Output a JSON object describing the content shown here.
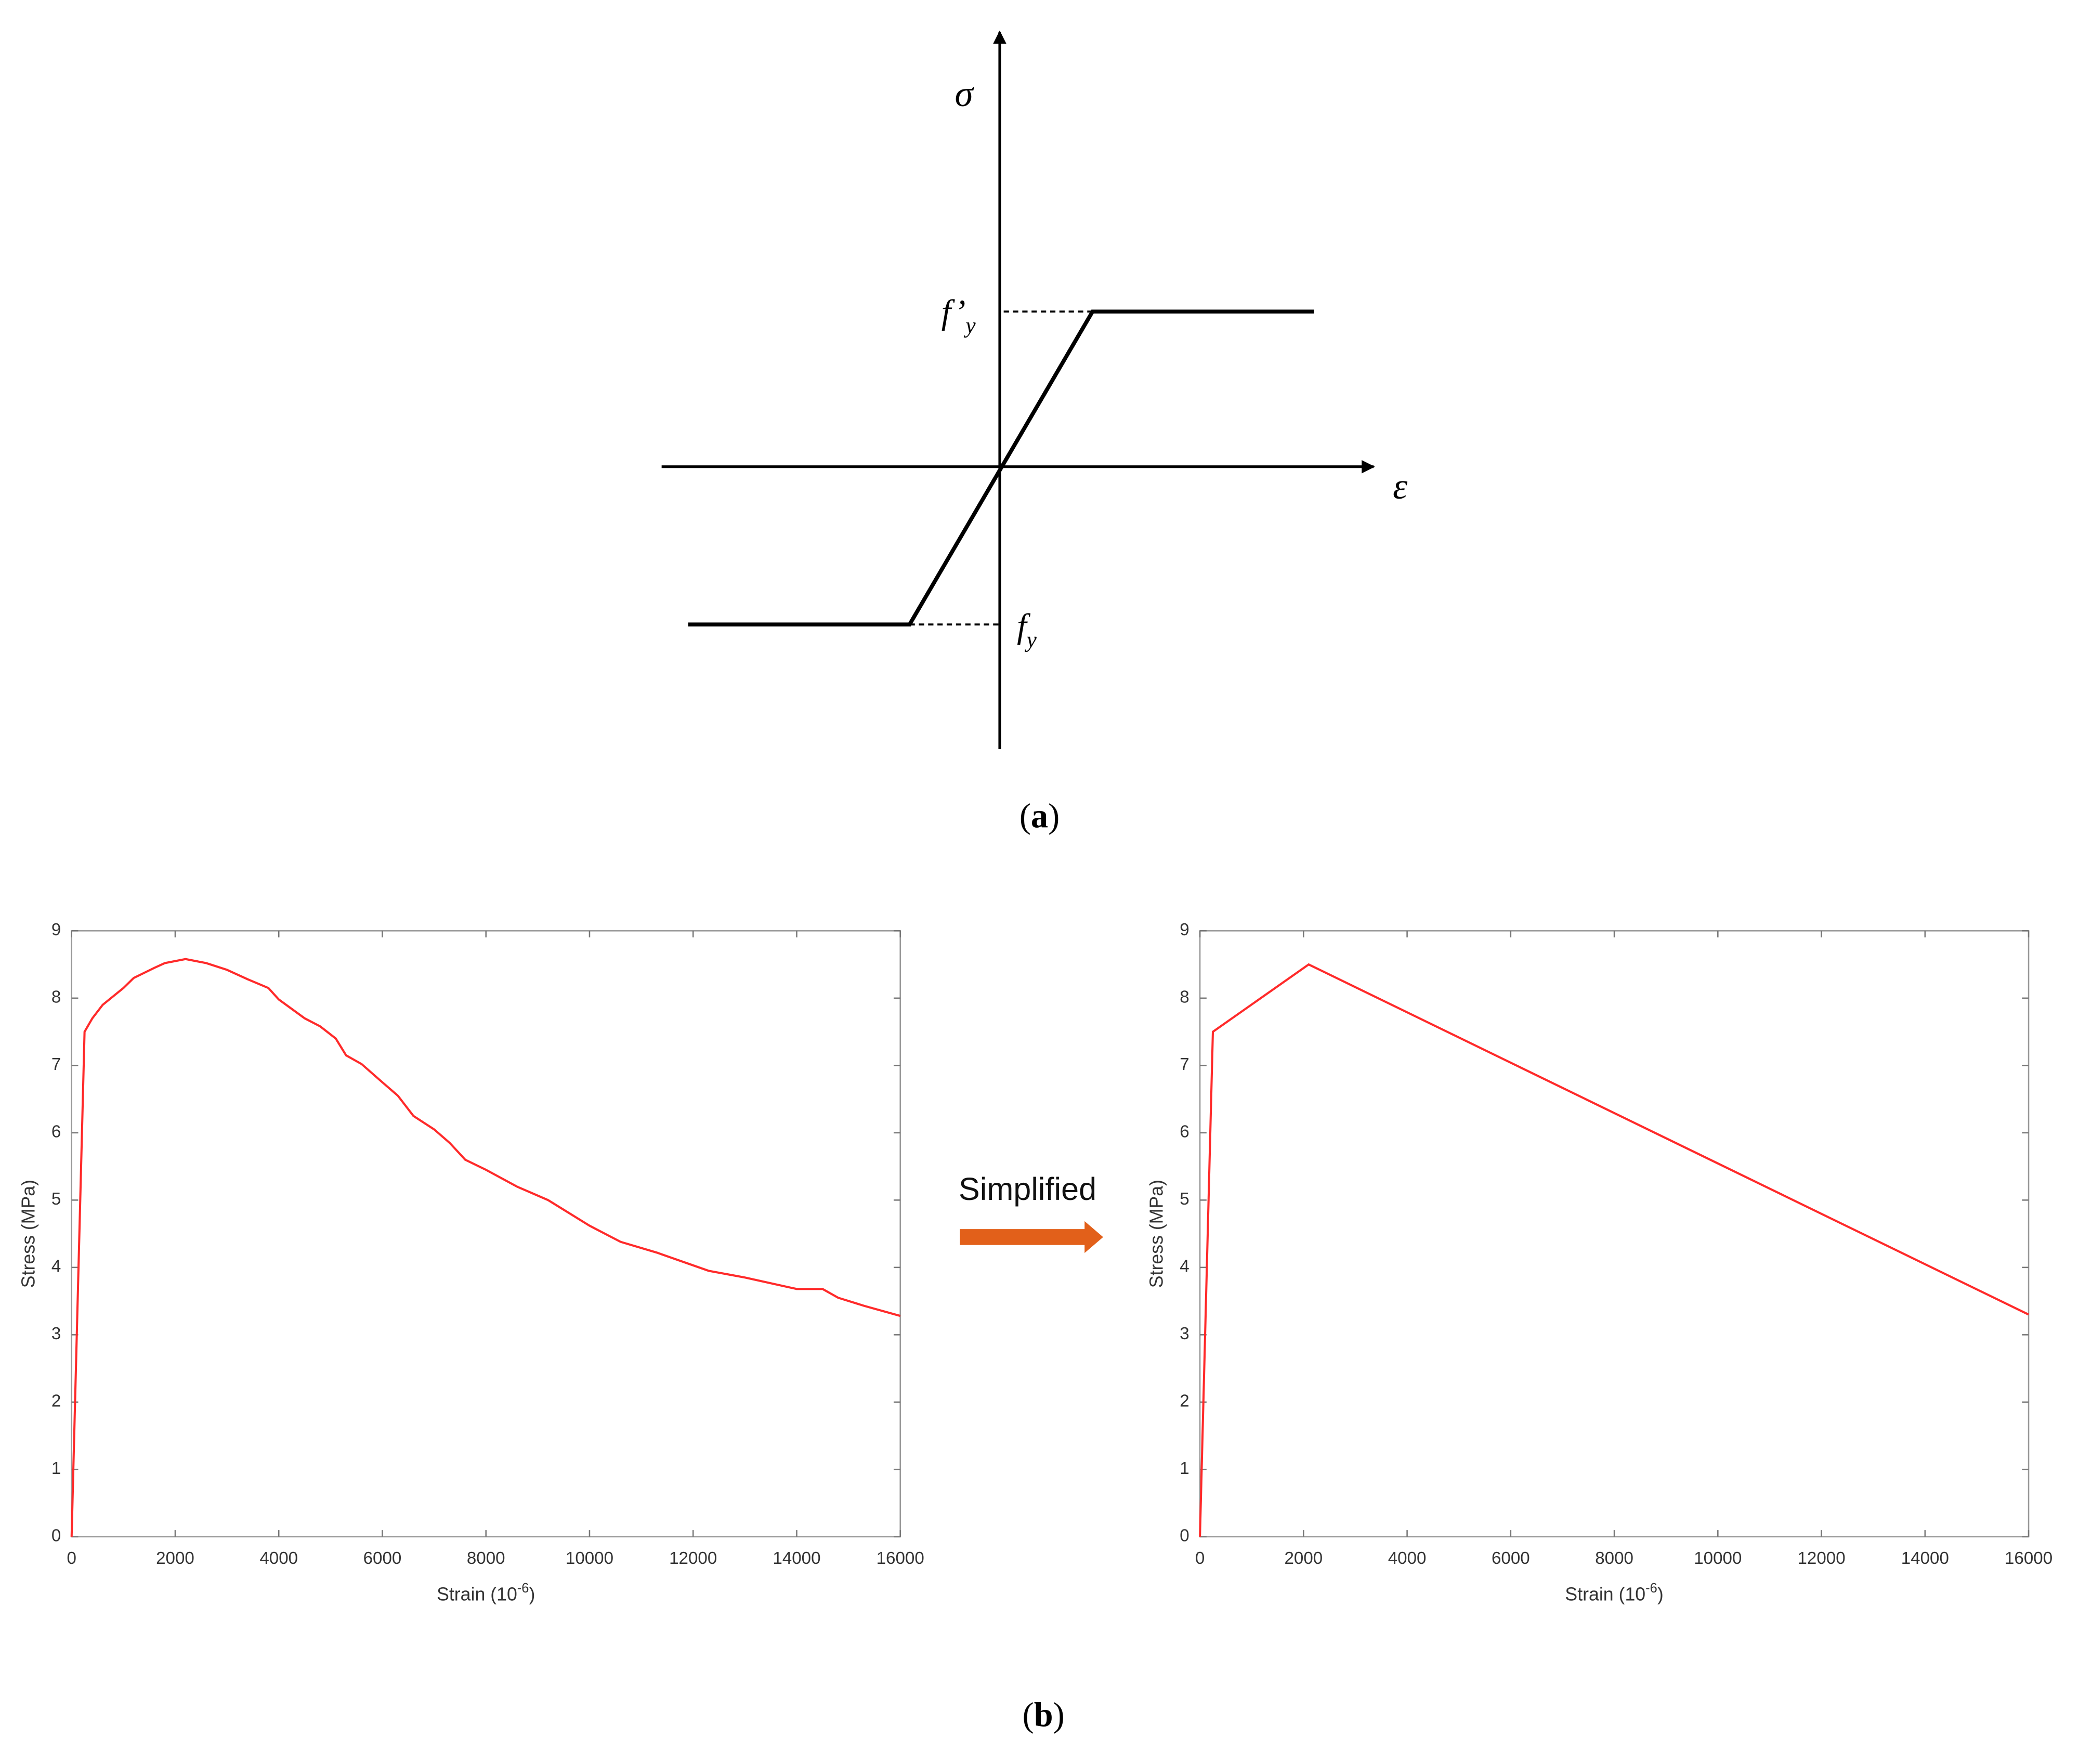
{
  "diagram": {
    "y_symbol": "σ",
    "x_symbol": "ε",
    "upper_label": {
      "base": "f’",
      "sub": "y"
    },
    "lower_label": {
      "base": "f",
      "sub": "y"
    }
  },
  "captions": [
    "a",
    "b"
  ],
  "annotation": "Simplified",
  "chart_data": [
    {
      "type": "line",
      "color": "#ff2a2a",
      "ylabel": "Stress (MPa)",
      "xlabel": {
        "text": "Strain (10",
        "superscript": "-6",
        "close": ")"
      },
      "xlim": [
        0,
        16000
      ],
      "ylim": [
        0,
        9
      ],
      "xticks": [
        0,
        2000,
        4000,
        6000,
        8000,
        10000,
        12000,
        14000,
        16000
      ],
      "yticks": [
        0,
        1,
        2,
        3,
        4,
        5,
        6,
        7,
        8,
        9
      ],
      "x": [
        0,
        250,
        400,
        600,
        1000,
        1200,
        1600,
        1800,
        2200,
        2600,
        3000,
        3400,
        3800,
        4000,
        4500,
        4800,
        5100,
        5300,
        5600,
        6000,
        6300,
        6600,
        7000,
        7300,
        7600,
        8000,
        8600,
        9200,
        10000,
        10600,
        11300,
        12300,
        13000,
        14000,
        14500,
        14800,
        15300,
        16000
      ],
      "values": [
        0,
        7.5,
        7.7,
        7.9,
        8.15,
        8.3,
        8.45,
        8.52,
        8.58,
        8.52,
        8.42,
        8.28,
        8.15,
        7.98,
        7.7,
        7.58,
        7.4,
        7.15,
        7.02,
        6.75,
        6.55,
        6.25,
        6.05,
        5.85,
        5.6,
        5.45,
        5.2,
        5.0,
        4.62,
        4.38,
        4.22,
        3.95,
        3.85,
        3.68,
        3.68,
        3.55,
        3.43,
        3.28
      ]
    },
    {
      "type": "line",
      "color": "#ff2a2a",
      "ylabel": "Stress (MPa)",
      "xlabel": {
        "text": "Strain (10",
        "superscript": "-6",
        "close": ")"
      },
      "xlim": [
        0,
        16000
      ],
      "ylim": [
        0,
        9
      ],
      "xticks": [
        0,
        2000,
        4000,
        6000,
        8000,
        10000,
        12000,
        14000,
        16000
      ],
      "yticks": [
        0,
        1,
        2,
        3,
        4,
        5,
        6,
        7,
        8,
        9
      ],
      "x": [
        0,
        250,
        2100,
        16000
      ],
      "values": [
        0,
        7.5,
        8.5,
        3.3
      ]
    }
  ]
}
